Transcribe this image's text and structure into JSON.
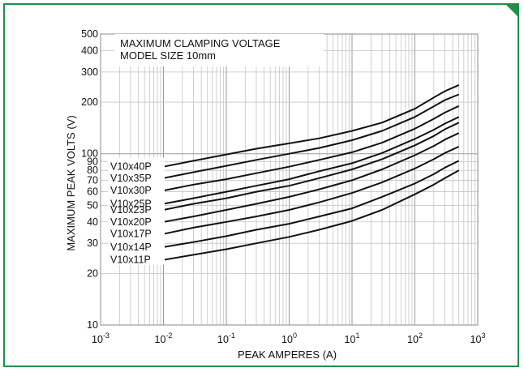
{
  "chart_data": {
    "type": "line",
    "title_lines": [
      "MAXIMUM CLAMPING VOLTAGE",
      "MODEL SIZE 10mm"
    ],
    "xlabel": "PEAK AMPERES (A)",
    "ylabel": "MAXIMUM PEAK VOLTS (V)",
    "x_scale": "log",
    "y_scale": "log",
    "xlim": [
      0.001,
      1000
    ],
    "ylim": [
      10,
      500
    ],
    "grid": true,
    "x_ticks": [
      {
        "base": "10",
        "exp": "-3",
        "value": 0.001
      },
      {
        "base": "10",
        "exp": "-2",
        "value": 0.01
      },
      {
        "base": "10",
        "exp": "-1",
        "value": 0.1
      },
      {
        "base": "10",
        "exp": "0",
        "value": 1
      },
      {
        "base": "10",
        "exp": "1",
        "value": 10
      },
      {
        "base": "10",
        "exp": "2",
        "value": 100
      },
      {
        "base": "10",
        "exp": "3",
        "value": 1000
      }
    ],
    "y_ticks": [
      {
        "label": "500",
        "value": 500
      },
      {
        "label": "400",
        "value": 400
      },
      {
        "label": "300",
        "value": 300
      },
      {
        "label": "200",
        "value": 200
      },
      {
        "label": "100",
        "value": 100
      },
      {
        "label": "90",
        "value": 90
      },
      {
        "label": "80",
        "value": 80
      },
      {
        "label": "70",
        "value": 70
      },
      {
        "label": "60",
        "value": 60
      },
      {
        "label": "50",
        "value": 50
      },
      {
        "label": "40",
        "value": 40
      },
      {
        "label": "30",
        "value": 30
      },
      {
        "label": "20",
        "value": 20
      },
      {
        "label": "10",
        "value": 10
      }
    ],
    "x": [
      0.01,
      0.03,
      0.1,
      0.3,
      1,
      3,
      10,
      30,
      100,
      200,
      300,
      500
    ],
    "series": [
      {
        "name": "V10x40P",
        "values": [
          84,
          91,
          99,
          107,
          115,
          123,
          136,
          152,
          183,
          213,
          232,
          252
        ]
      },
      {
        "name": "V10x35P",
        "values": [
          72,
          78,
          85,
          92,
          100,
          108,
          120,
          136,
          164,
          189,
          206,
          222
        ]
      },
      {
        "name": "V10x30P",
        "values": [
          61,
          66,
          71,
          77,
          84,
          92,
          102,
          116,
          140,
          160,
          174,
          190
        ]
      },
      {
        "name": "V10x25P",
        "values": [
          51,
          55,
          60,
          65,
          71,
          79,
          88,
          101,
          122,
          138,
          150,
          164
        ]
      },
      {
        "name": "V10x23P",
        "values": [
          47,
          51,
          55,
          60,
          65,
          72,
          81,
          93,
          112,
          127,
          139,
          152
        ]
      },
      {
        "name": "V10x20P",
        "values": [
          40,
          43,
          47,
          51,
          56,
          62,
          70,
          81,
          98,
          111,
          121,
          132
        ]
      },
      {
        "name": "V10x17P",
        "values": [
          34,
          37,
          40,
          43,
          47,
          52,
          59,
          68,
          82,
          93,
          101,
          110
        ]
      },
      {
        "name": "V10x14P",
        "values": [
          28.5,
          30.5,
          33,
          36,
          39,
          43,
          48,
          56,
          67,
          76,
          83,
          91
        ]
      },
      {
        "name": "V10x11P",
        "values": [
          24,
          25.7,
          27.7,
          30,
          32.7,
          36,
          40.5,
          47,
          58,
          66,
          72,
          80
        ]
      }
    ],
    "label_values": [
      84,
      72,
      61,
      51,
      47,
      40,
      34,
      28.5,
      24
    ]
  }
}
